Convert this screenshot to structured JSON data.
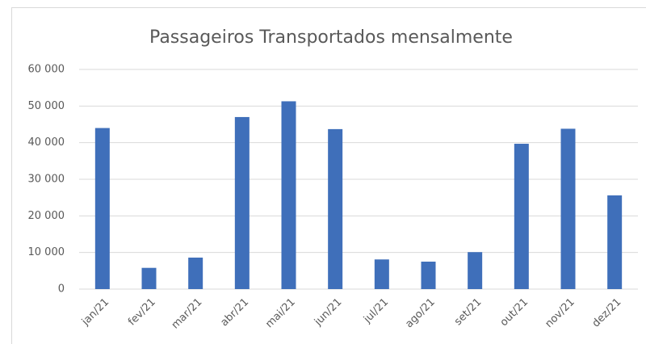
{
  "chart_data": {
    "type": "bar",
    "title": "Passageiros Transportados mensalmente",
    "categories": [
      "jan/21",
      "fev/21",
      "mar/21",
      "abr/21",
      "mai/21",
      "jun/21",
      "jul/21",
      "ago/21",
      "set/21",
      "out/21",
      "nov/21",
      "dez/21"
    ],
    "values": [
      44000,
      5800,
      8600,
      47000,
      51300,
      43700,
      8100,
      7500,
      10100,
      39700,
      43800,
      25600
    ],
    "color": "#3f6fba",
    "ylim": [
      0,
      60000
    ],
    "yticks": [
      0,
      {
        "value": 10000,
        "label": "10 000"
      },
      {
        "value": 20000,
        "label": "20 000"
      },
      {
        "value": 30000,
        "label": "30 000"
      },
      {
        "value": 40000,
        "label": "40 000"
      },
      {
        "value": 50000,
        "label": "50 000"
      },
      {
        "value": 60000,
        "label": "60 000"
      }
    ],
    "grid": true
  }
}
